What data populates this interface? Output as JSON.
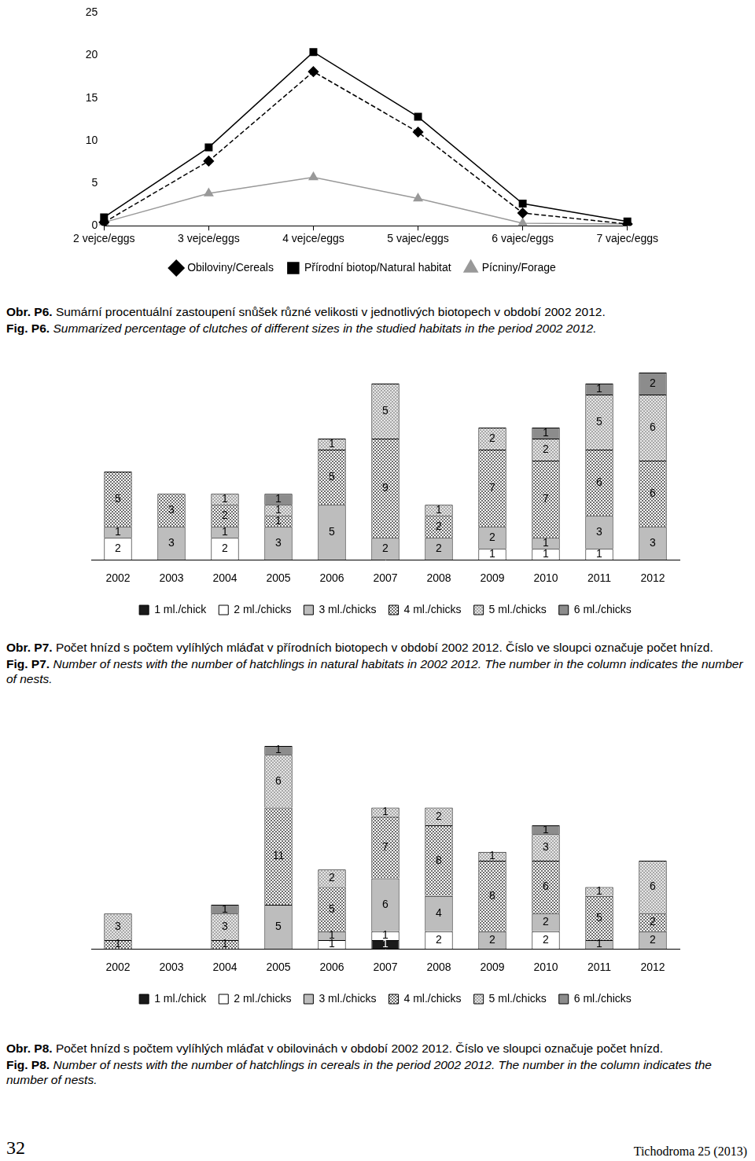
{
  "chart_data": [
    {
      "type": "line",
      "categories": [
        "2 vejce/eggs",
        "3 vejce/eggs",
        "4 vejce/eggs",
        "5 vajec/eggs",
        "6 vajec/eggs",
        "7 vajec/eggs"
      ],
      "series": [
        {
          "name": "Obiloviny/Cereals",
          "color": "#000000",
          "marker": "diamond",
          "line_style": "dashed",
          "values": [
            0.4,
            7.6,
            18.1,
            11.0,
            1.5,
            0.2
          ]
        },
        {
          "name": "Přírodní biotop/Natural habitat",
          "color": "#000000",
          "marker": "square",
          "line_style": "solid",
          "values": [
            1.0,
            9.2,
            20.4,
            12.8,
            2.6,
            0.5
          ]
        },
        {
          "name": "Pícniny/Forage",
          "color": "#999999",
          "marker": "triangle",
          "line_style": "solid",
          "values": [
            0.4,
            3.8,
            5.7,
            3.2,
            0.3,
            0.2
          ]
        }
      ],
      "ylim": [
        0,
        25
      ],
      "yticks": [
        0,
        5,
        10,
        15,
        20,
        25
      ],
      "grid": false,
      "legend": "bottom"
    },
    {
      "type": "bar",
      "stacked": true,
      "data_labels": true,
      "tick_labels": "x",
      "grid": false,
      "legend": "bottom",
      "categories": [
        "2002",
        "2003",
        "2004",
        "2005",
        "2006",
        "2007",
        "2008",
        "2009",
        "2010",
        "2011",
        "2012"
      ],
      "ylim": [
        0,
        17
      ],
      "series": [
        {
          "name": "1 ml./chick",
          "color": "#1a1a1a",
          "values": [
            null,
            null,
            null,
            null,
            null,
            null,
            null,
            null,
            null,
            null,
            null
          ]
        },
        {
          "name": "2 ml./chicks",
          "color": "#ffffff",
          "values": [
            2,
            null,
            2,
            null,
            null,
            null,
            null,
            1,
            1,
            1,
            null
          ]
        },
        {
          "name": "3 ml./chicks",
          "color": "#bdbdbd",
          "values": [
            1,
            3,
            1,
            3,
            5,
            2,
            2,
            2,
            1,
            3,
            3
          ]
        },
        {
          "name": "4 ml./chicks",
          "color": "#6e6e6e",
          "values": [
            5,
            3,
            2,
            1,
            5,
            9,
            2,
            7,
            7,
            6,
            6
          ]
        },
        {
          "name": "5 ml./chicks",
          "color": "#a8a8a8",
          "values": [
            null,
            null,
            1,
            1,
            1,
            5,
            1,
            2,
            2,
            5,
            6
          ]
        },
        {
          "name": "6 ml./chicks",
          "color": "#8c8c8c",
          "values": [
            null,
            null,
            null,
            1,
            null,
            null,
            null,
            null,
            1,
            1,
            2
          ]
        }
      ]
    },
    {
      "type": "bar",
      "stacked": true,
      "data_labels": true,
      "tick_labels": "x",
      "grid": false,
      "legend": "bottom",
      "categories": [
        "2002",
        "2003",
        "2004",
        "2005",
        "2006",
        "2007",
        "2008",
        "2009",
        "2010",
        "2011",
        "2012"
      ],
      "ylim": [
        0,
        23
      ],
      "series": [
        {
          "name": "1 ml./chick",
          "color": "#1a1a1a",
          "values": [
            null,
            null,
            null,
            null,
            null,
            1,
            null,
            null,
            null,
            null,
            null
          ]
        },
        {
          "name": "2 ml./chicks",
          "color": "#ffffff",
          "values": [
            null,
            null,
            null,
            null,
            1,
            1,
            2,
            null,
            2,
            null,
            null
          ]
        },
        {
          "name": "3 ml./chicks",
          "color": "#bdbdbd",
          "values": [
            null,
            null,
            null,
            5,
            1,
            6,
            4,
            2,
            2,
            1,
            2
          ]
        },
        {
          "name": "4 ml./chicks",
          "color": "#6e6e6e",
          "values": [
            1,
            null,
            1,
            11,
            5,
            7,
            8,
            8,
            6,
            5,
            2
          ]
        },
        {
          "name": "5 ml./chicks",
          "color": "#a8a8a8",
          "values": [
            3,
            null,
            3,
            6,
            2,
            1,
            2,
            1,
            3,
            1,
            6
          ]
        },
        {
          "name": "6 ml./chicks",
          "color": "#8c8c8c",
          "values": [
            null,
            null,
            1,
            1,
            null,
            null,
            null,
            null,
            1,
            null,
            null
          ]
        }
      ]
    }
  ],
  "captions": [
    {
      "cz_label": "Obr. P6.",
      "cz_text": "Sumární procentuální zastoupení snůšek různé velikosti v jednotlivých biotopech v období 2002 2012.",
      "en_label": "Fig. P6.",
      "en_text": "Summarized percentage of clutches of different sizes in the studied habitats in the period 2002 2012."
    },
    {
      "cz_label": "Obr. P7.",
      "cz_text": "Počet hnízd s počtem vylíhlých mláďat v přírodních biotopech v období 2002 2012. Číslo ve sloupci označuje počet hnízd.",
      "en_label": "Fig. P7.",
      "en_text": "Number of nests with the number of hatchlings in natural habitats in 2002 2012. The number in the column indicates the number of nests."
    },
    {
      "cz_label": "Obr. P8.",
      "cz_text": "Počet hnízd s počtem vylíhlých mláďat v obilovinách v období 2002 2012. Číslo ve sloupci označuje počet hnízd.",
      "en_label": "Fig. P8.",
      "en_text": "Number of nests with the number of hatchlings in cereals in the period 2002 2012. The number in the column indicates the number of nests."
    }
  ],
  "footer": {
    "page": "32",
    "journal": "Tichodroma 25 (2013)"
  }
}
